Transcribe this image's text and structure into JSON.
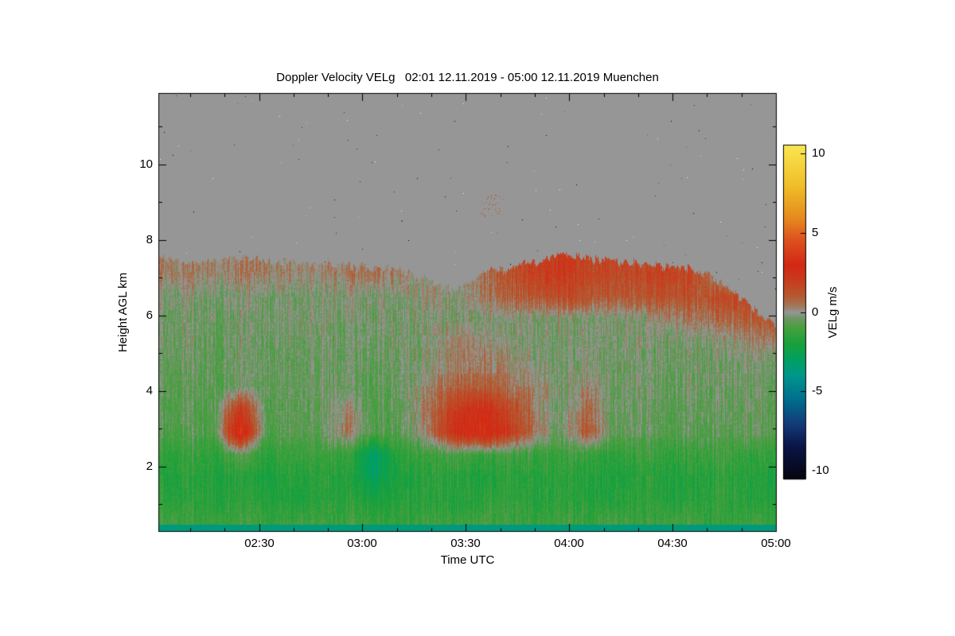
{
  "chart_data": {
    "type": "heatmap",
    "title": "Doppler Velocity VELg   02:01 12.11.2019 - 05:00 12.11.2019 Muenchen",
    "xlabel": "Time UTC",
    "ylabel": "Height AGL km",
    "x_start": "02:01",
    "x_end": "05:00",
    "x_range_minutes": [
      0,
      179
    ],
    "x_ticks": [
      {
        "label": "02:30",
        "min": 29
      },
      {
        "label": "03:00",
        "min": 59
      },
      {
        "label": "03:30",
        "min": 89
      },
      {
        "label": "04:00",
        "min": 119
      },
      {
        "label": "04:30",
        "min": 149
      },
      {
        "label": "05:00",
        "min": 179
      }
    ],
    "x_minor_step_min": 10,
    "y_range_km": [
      0.29,
      11.87
    ],
    "y_ticks": [
      2,
      4,
      6,
      8,
      10
    ],
    "y_minor_ticks": [
      1,
      3,
      5,
      7,
      9,
      11
    ],
    "colorbar": {
      "label": "VELg m/s",
      "ticks": [
        10,
        5,
        0,
        -5,
        -10
      ],
      "vmin": -10.5,
      "vmax": 10.5
    },
    "no_data_color": "#969696",
    "background": "#ffffff",
    "colormap_stops": [
      [
        -10.5,
        "#05050f"
      ],
      [
        -8.5,
        "#0a1446"
      ],
      [
        -7.0,
        "#123c78"
      ],
      [
        -5.5,
        "#006e8c"
      ],
      [
        -4.0,
        "#00968c"
      ],
      [
        -3.0,
        "#00a064"
      ],
      [
        -2.0,
        "#18a03c"
      ],
      [
        -1.0,
        "#46a03c"
      ],
      [
        -0.4,
        "#6e9664"
      ],
      [
        0.0,
        "#969696"
      ],
      [
        0.4,
        "#a0785a"
      ],
      [
        1.0,
        "#b45a32"
      ],
      [
        2.0,
        "#c83c1e"
      ],
      [
        3.0,
        "#d22814"
      ],
      [
        4.5,
        "#dc501e"
      ],
      [
        6.0,
        "#e68c1e"
      ],
      [
        8.0,
        "#f0be28"
      ],
      [
        10.5,
        "#fae650"
      ]
    ],
    "cloud_top_km": [
      7.55,
      7.45,
      7.42,
      7.5,
      7.45,
      7.4,
      7.35,
      7.32,
      7.28,
      7.2,
      6.95,
      6.6,
      7.1,
      7.25,
      7.4,
      7.6,
      7.5,
      7.42,
      7.35,
      7.3,
      7.2,
      6.9,
      6.3,
      5.7
    ],
    "bottom_strip": {
      "top_km": 0.45,
      "value": -3.6
    },
    "grid": {
      "heights_km": [
        0.5,
        1.1,
        1.7,
        2.3,
        2.9,
        3.5,
        4.1,
        4.7,
        5.3,
        5.9,
        6.5,
        7.1
      ],
      "n_time_cols": 24,
      "values": [
        [
          -1.2,
          -1.0,
          -1.3,
          -1.1,
          -1.4,
          -1.2,
          -1.0,
          -1.3,
          -1.2,
          -1.4,
          -1.1,
          -1.3,
          -1.0,
          -1.2,
          -1.4,
          -1.1,
          -1.2,
          -1.0,
          -1.3,
          -1.1,
          -1.2,
          -1.4,
          -1.2,
          -1.3
        ],
        [
          -1.6,
          -1.4,
          -1.8,
          -1.5,
          -1.7,
          -1.9,
          -1.5,
          -1.6,
          -2.0,
          -1.7,
          -1.5,
          -1.8,
          -1.6,
          -1.4,
          -1.7,
          -1.5,
          -1.6,
          -1.8,
          -1.5,
          -1.7,
          -1.6,
          -1.4,
          -1.6,
          -1.8
        ],
        [
          -1.8,
          -1.5,
          -1.9,
          -1.6,
          -2.0,
          -1.7,
          -1.5,
          -1.8,
          -2.8,
          -1.9,
          -1.6,
          -1.7,
          -1.9,
          -1.6,
          -1.8,
          -1.5,
          -1.7,
          -1.9,
          -1.6,
          -1.8,
          -1.7,
          -1.5,
          -1.7,
          -1.9
        ],
        [
          -1.4,
          -1.2,
          -1.6,
          -0.8,
          -1.5,
          -1.3,
          -1.1,
          -1.4,
          -3.2,
          -1.5,
          -1.2,
          -1.0,
          -1.3,
          -1.1,
          -1.4,
          -1.2,
          -1.3,
          -1.5,
          -1.2,
          -1.4,
          -1.3,
          -1.1,
          -1.3,
          -1.5
        ],
        [
          -0.9,
          -0.6,
          -1.0,
          3.8,
          -0.8,
          -0.7,
          -0.5,
          0.4,
          -0.9,
          -0.7,
          0.3,
          2.6,
          3.4,
          2.2,
          0.6,
          -0.6,
          1.2,
          -0.7,
          -0.5,
          -0.8,
          -0.6,
          -0.7,
          -0.5,
          -0.8
        ],
        [
          -0.8,
          -0.5,
          -0.9,
          2.2,
          -0.7,
          -0.6,
          -0.4,
          0.2,
          -0.8,
          -0.6,
          0.5,
          2.0,
          2.8,
          1.6,
          0.4,
          -0.5,
          0.8,
          -0.6,
          -0.4,
          -0.7,
          -0.5,
          -0.6,
          -0.4,
          -0.7
        ],
        [
          -0.7,
          -0.5,
          -0.8,
          -0.4,
          -0.6,
          -0.5,
          -0.3,
          -0.6,
          -0.7,
          -0.5,
          0.2,
          0.8,
          1.0,
          0.6,
          0.2,
          -0.4,
          0.3,
          -0.5,
          -0.3,
          -0.6,
          -0.4,
          -0.5,
          -0.3,
          -0.6
        ],
        [
          -0.6,
          -0.3,
          -0.7,
          -0.4,
          -0.5,
          -0.6,
          -0.3,
          -0.5,
          -0.6,
          -0.4,
          -0.2,
          0.3,
          0.4,
          0.2,
          -0.2,
          -0.4,
          -0.2,
          -0.5,
          -0.3,
          -0.5,
          -0.4,
          -0.4,
          -0.3,
          -0.5
        ],
        [
          -0.5,
          -0.2,
          -0.6,
          -0.3,
          -0.5,
          -0.4,
          -0.3,
          -0.5,
          -0.4,
          -0.3,
          -0.2,
          0.2,
          0.2,
          -0.2,
          -0.3,
          -0.4,
          -0.2,
          -0.4,
          -0.3,
          -0.4,
          -0.3,
          -0.2,
          0.2,
          0.3
        ],
        [
          -0.4,
          -0.2,
          -0.5,
          -0.3,
          -0.4,
          -0.3,
          -0.2,
          -0.4,
          -0.3,
          -0.4,
          -0.2,
          -0.3,
          -0.2,
          -0.3,
          -0.2,
          -0.3,
          -0.2,
          -0.3,
          -0.2,
          0.3,
          0.5,
          0.8,
          1.0,
          1.2
        ],
        [
          -0.3,
          -0.1,
          -0.4,
          -0.2,
          -0.3,
          -0.4,
          -0.2,
          -0.3,
          -0.2,
          -0.3,
          0.2,
          -0.2,
          0.4,
          0.8,
          1.2,
          1.5,
          1.3,
          1.0,
          1.2,
          1.4,
          1.2,
          1.5,
          1.8,
          0.0
        ],
        [
          0.3,
          0.5,
          0.2,
          0.4,
          0.3,
          0.2,
          0.4,
          0.3,
          0.5,
          0.4,
          0.0,
          0.0,
          0.6,
          1.2,
          1.8,
          2.2,
          1.8,
          1.5,
          1.6,
          1.8,
          1.5,
          0.0,
          0.0,
          0.0
        ]
      ]
    },
    "gray_speckle_colors": [
      "#000000",
      "#e8d84a",
      "#c23818",
      "#d97b20",
      "#1a2a6a",
      "#f5f5f5"
    ],
    "gray_artifact": {
      "time_min_range": [
        93,
        100
      ],
      "height_km_range": [
        8.6,
        9.2
      ]
    }
  }
}
